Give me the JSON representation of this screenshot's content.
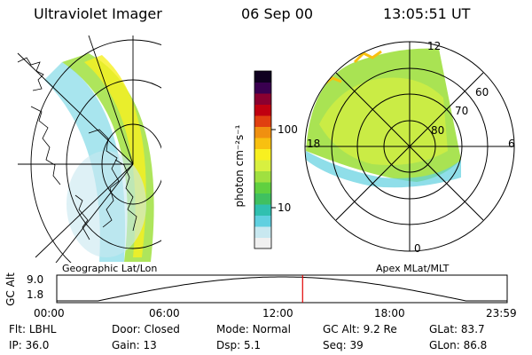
{
  "header": {
    "instrument": "Ultraviolet Imager",
    "date": "06 Sep 00",
    "time": "13:05:51 UT"
  },
  "colorbar": {
    "title": "photon cm⁻²s⁻¹",
    "ticks": [
      {
        "label": "100",
        "value": 100
      },
      {
        "label": "10",
        "value": 10
      }
    ],
    "colors": [
      "#f0f0f0",
      "#c8e8f0",
      "#60d0e0",
      "#30c0b0",
      "#40c060",
      "#60d040",
      "#a0e040",
      "#d8f040",
      "#f8f020",
      "#f8c010",
      "#f09010",
      "#e04010",
      "#c00010",
      "#8a0030",
      "#3a0050",
      "#100020"
    ]
  },
  "left_map": {
    "caption": "Geographic Lat/Lon"
  },
  "right_map": {
    "caption": "Apex MLat/MLT",
    "mlt_labels": [
      "12",
      "18",
      "6",
      "0"
    ],
    "mlat_labels": [
      "60",
      "70",
      "80"
    ]
  },
  "timeline": {
    "axis_label": "GC Alt",
    "y_ticks": [
      "9.0",
      "1.8"
    ],
    "x_ticks": [
      "00:00",
      "06:00",
      "12:00",
      "18:00",
      "23:59"
    ],
    "current_marker_hour": 13.1,
    "marker_color": "#e00000"
  },
  "status": {
    "row1": [
      {
        "k": "Flt:",
        "v": "LBHL"
      },
      {
        "k": "Door:",
        "v": "Closed"
      },
      {
        "k": "Mode:",
        "v": "Normal"
      },
      {
        "k": "GC Alt:",
        "v": "9.2 Re"
      },
      {
        "k": "GLat:",
        "v": "83.7"
      }
    ],
    "row2": [
      {
        "k": "IP:",
        "v": "36.0"
      },
      {
        "k": "Gain:",
        "v": "13"
      },
      {
        "k": "Dsp:",
        "v": "5.1"
      },
      {
        "k": "Seq:",
        "v": "39"
      },
      {
        "k": "GLon:",
        "v": "86.8"
      }
    ]
  }
}
